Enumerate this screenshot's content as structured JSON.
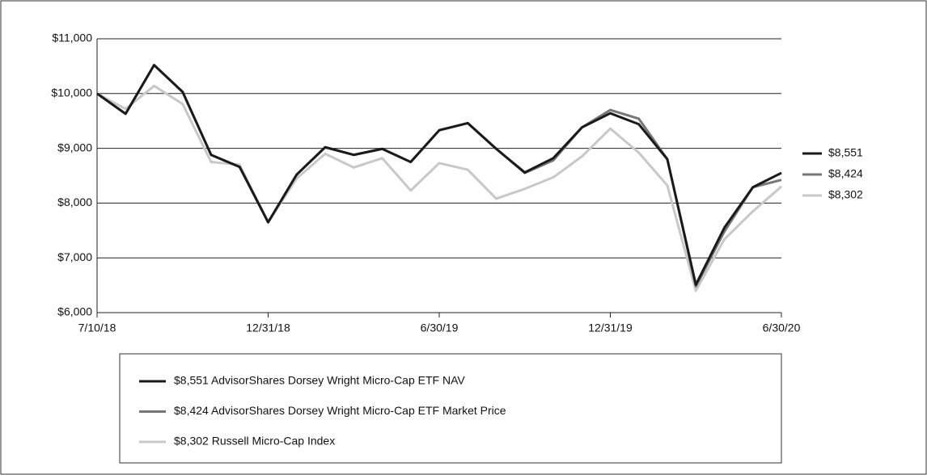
{
  "chart_data": {
    "type": "line",
    "categories": [
      "7/10/18",
      null,
      null,
      null,
      null,
      null,
      "12/31/18",
      null,
      null,
      null,
      null,
      null,
      "6/30/19",
      null,
      null,
      null,
      null,
      null,
      "12/31/19",
      null,
      null,
      null,
      null,
      null,
      "6/30/20"
    ],
    "series": [
      {
        "name": "$8,551 AdvisorShares Dorsey Wright Micro-Cap ETF NAV",
        "color": "#1a1a1a",
        "values": [
          10000,
          9630,
          10520,
          10030,
          8880,
          8660,
          7650,
          8520,
          9020,
          8880,
          8990,
          8750,
          9330,
          9460,
          8990,
          8560,
          8820,
          9380,
          9640,
          9440,
          8800,
          6510,
          7550,
          8290,
          8551
        ],
        "value_labels": [
          null,
          null,
          null,
          null,
          null,
          null,
          null,
          null,
          null,
          null,
          null,
          null,
          null,
          null,
          null,
          null,
          null,
          null,
          null,
          null,
          null,
          null,
          null,
          null,
          "$8,551"
        ]
      },
      {
        "name": "$8,424 AdvisorShares Dorsey Wright Micro-Cap ETF Market Price",
        "color": "#777777",
        "values": [
          10000,
          9630,
          10520,
          10030,
          8880,
          8660,
          7650,
          8520,
          9020,
          8880,
          8990,
          8750,
          9330,
          9460,
          8990,
          8550,
          8780,
          9380,
          9700,
          9540,
          8800,
          6480,
          7480,
          8290,
          8424
        ],
        "value_labels": [
          null,
          null,
          null,
          null,
          null,
          null,
          null,
          null,
          null,
          null,
          null,
          null,
          null,
          null,
          null,
          null,
          null,
          null,
          null,
          null,
          null,
          null,
          null,
          null,
          "$8,424"
        ]
      },
      {
        "name": "$8,302 Russell Micro-Cap Index",
        "color": "#c8c8c8",
        "values": [
          10000,
          9720,
          10140,
          9810,
          8750,
          8700,
          7650,
          8450,
          8900,
          8650,
          8820,
          8230,
          8730,
          8610,
          8080,
          8260,
          8470,
          8850,
          9360,
          8920,
          8320,
          6400,
          7340,
          7850,
          8302
        ],
        "value_labels": [
          null,
          null,
          null,
          null,
          null,
          null,
          null,
          null,
          null,
          null,
          null,
          null,
          null,
          null,
          null,
          null,
          null,
          null,
          null,
          null,
          null,
          null,
          null,
          null,
          "$8,302"
        ]
      }
    ],
    "ylim": [
      6000,
      11000
    ],
    "yticks": [
      {
        "value": 6000,
        "label": "$6,000"
      },
      {
        "value": 7000,
        "label": "$7,000"
      },
      {
        "value": 8000,
        "label": "$8,000"
      },
      {
        "value": 9000,
        "label": "$9,000"
      },
      {
        "value": 10000,
        "label": "$10,000"
      },
      {
        "value": 11000,
        "label": "$11,000"
      }
    ],
    "grid": true
  }
}
